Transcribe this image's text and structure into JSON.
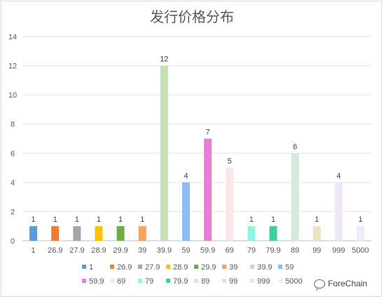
{
  "chart_data": {
    "type": "bar",
    "title": "发行价格分布",
    "categories": [
      "1",
      "26.9",
      "27.9",
      "28.9",
      "29.9",
      "39",
      "39.9",
      "59",
      "59.9",
      "69",
      "79",
      "79.9",
      "89",
      "99",
      "999",
      "5000"
    ],
    "values": [
      1,
      1,
      1,
      1,
      1,
      1,
      12,
      4,
      7,
      5,
      1,
      1,
      6,
      1,
      4,
      1
    ],
    "colors": [
      "#5b9bd5",
      "#ed7d31",
      "#a5a5a5",
      "#ffc000",
      "#70ad47",
      "#f4a460",
      "#c5e0b4",
      "#8fbcf2",
      "#e67fd3",
      "#fbe5e8",
      "#8ef5e6",
      "#3ecf9a",
      "#d5e8dc",
      "#f2e1c0",
      "#ede7f6",
      "#e8eefa"
    ],
    "ylim": [
      0,
      14
    ],
    "yticks": [
      0,
      2,
      4,
      6,
      8,
      10,
      12,
      14
    ],
    "grid": true,
    "legend_position": "bottom",
    "data_labels": true
  },
  "watermark": {
    "text": "ForeChain",
    "icon": "wechat-icon"
  }
}
